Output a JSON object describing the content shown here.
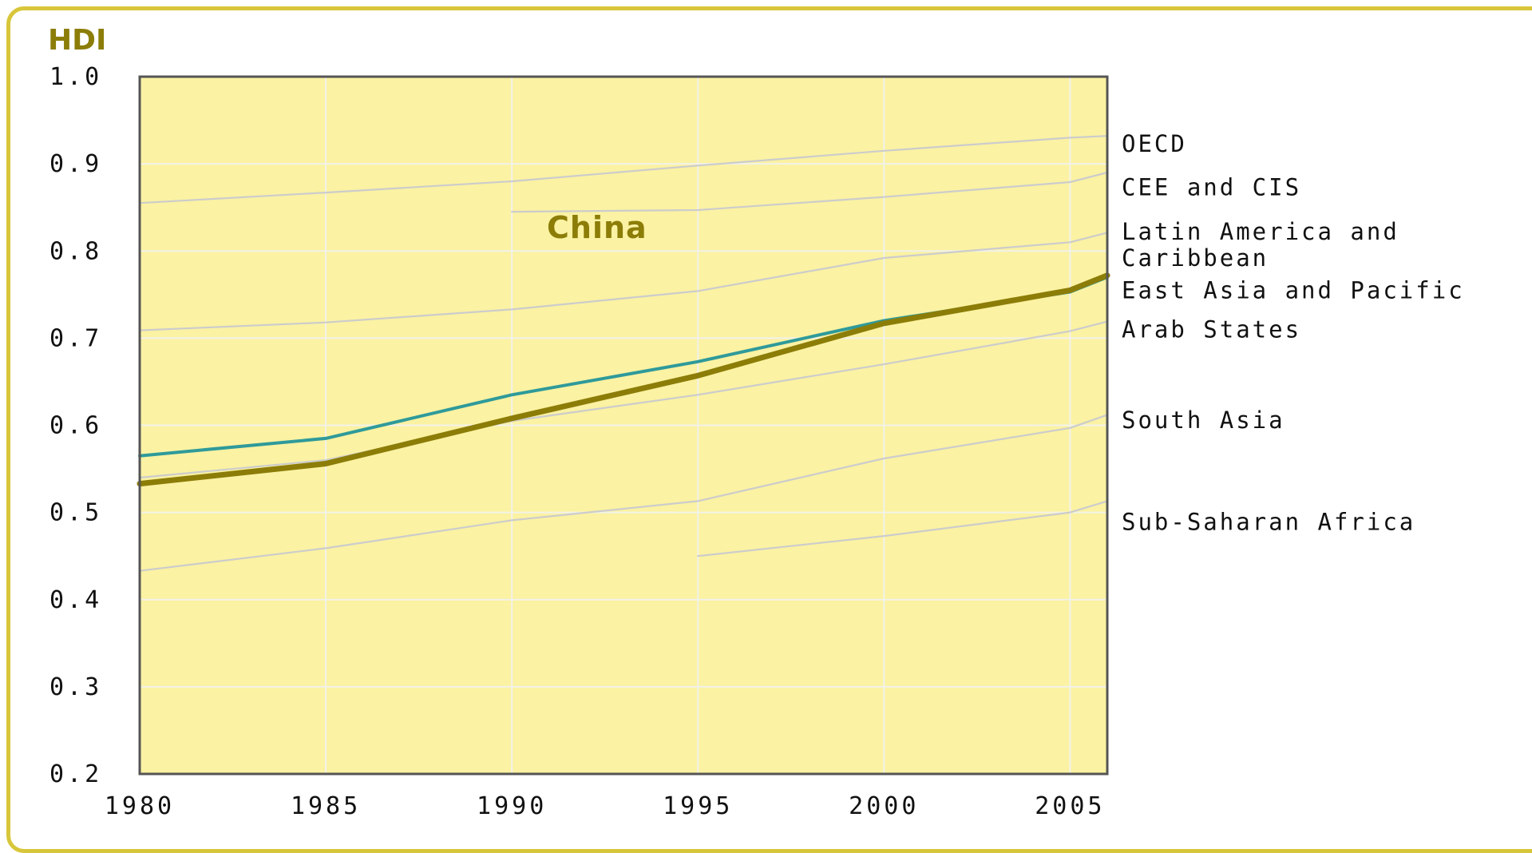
{
  "chart_data": {
    "type": "line",
    "ylabel": "HDI",
    "xlabel": "",
    "title": "",
    "annotation": "China",
    "ylim": [
      0.2,
      1.0
    ],
    "xlim": [
      1980,
      2006
    ],
    "y_ticks": [
      "0.2",
      "0.3",
      "0.4",
      "0.5",
      "0.6",
      "0.7",
      "0.8",
      "0.9",
      "1.0"
    ],
    "x_ticks": [
      "1980",
      "1985",
      "1990",
      "1995",
      "2000",
      "2005"
    ],
    "grid": true,
    "legend_position": "right",
    "colors": {
      "plot_bg": "#fbf2a3",
      "frame": "#d8c63a",
      "grid": "#f2f2ea",
      "region_line": "#cccccc",
      "china": "#8c7d08",
      "east_asia": "#2f9a9a",
      "label": "#8c7d08"
    },
    "series": [
      {
        "name": "OECD",
        "x": [
          1980,
          1985,
          1990,
          1995,
          2000,
          2005,
          2006
        ],
        "values": [
          0.855,
          0.867,
          0.88,
          0.898,
          0.915,
          0.93,
          0.932
        ]
      },
      {
        "name": "CEE and CIS",
        "x": [
          1990,
          1995,
          2000,
          2005,
          2006
        ],
        "values": [
          0.845,
          0.847,
          0.862,
          0.879,
          0.89
        ]
      },
      {
        "name": "Latin America and Caribbean",
        "x": [
          1980,
          1985,
          1990,
          1995,
          2000,
          2005,
          2006
        ],
        "values": [
          0.709,
          0.718,
          0.733,
          0.754,
          0.792,
          0.81,
          0.821
        ]
      },
      {
        "name": "East Asia and Pacific",
        "x": [
          1980,
          1985,
          1990,
          1995,
          2000,
          2005,
          2006
        ],
        "values": [
          0.565,
          0.585,
          0.635,
          0.673,
          0.72,
          0.753,
          0.77
        ]
      },
      {
        "name": "Arab States",
        "x": [
          1980,
          1985,
          1990,
          1995,
          2000,
          2005,
          2006
        ],
        "values": [
          0.54,
          0.56,
          0.605,
          0.635,
          0.67,
          0.708,
          0.719
        ]
      },
      {
        "name": "South Asia",
        "x": [
          1980,
          1985,
          1990,
          1995,
          2000,
          2005,
          2006
        ],
        "values": [
          0.433,
          0.459,
          0.491,
          0.513,
          0.562,
          0.597,
          0.612
        ]
      },
      {
        "name": "Sub-Saharan Africa",
        "x": [
          1995,
          2000,
          2005,
          2006
        ],
        "values": [
          0.45,
          0.473,
          0.5,
          0.513
        ]
      },
      {
        "name": "China",
        "x": [
          1980,
          1985,
          1990,
          1995,
          2000,
          2005,
          2006
        ],
        "values": [
          0.533,
          0.556,
          0.608,
          0.657,
          0.717,
          0.755,
          0.772
        ]
      }
    ],
    "legend_labels": [
      "OECD",
      "CEE and CIS",
      "Latin America and",
      "Caribbean",
      "East Asia and Pacific",
      "Arab States",
      "South Asia",
      "Sub-Saharan Africa"
    ]
  }
}
